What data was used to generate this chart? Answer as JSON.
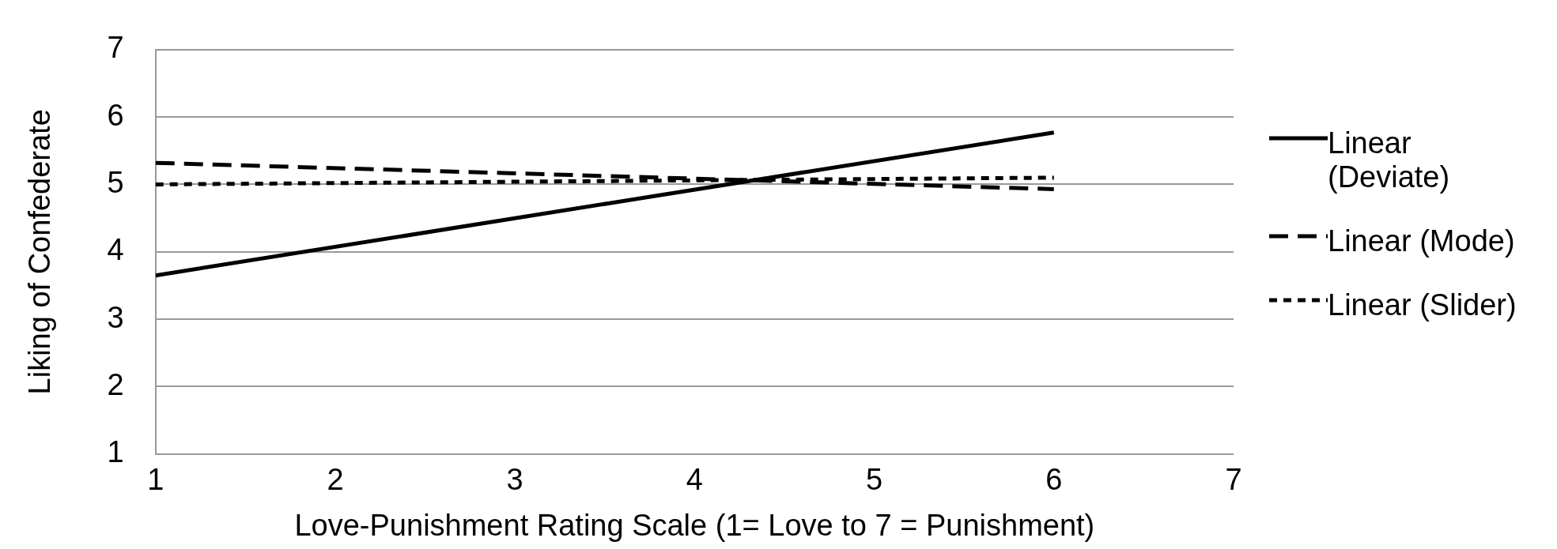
{
  "chart_data": {
    "type": "line",
    "xlabel": "Love-Punishment Rating Scale (1= Love to 7 = Punishment)",
    "ylabel": "Liking of Confederate",
    "x": [
      1,
      6
    ],
    "xlim": [
      1,
      7
    ],
    "xticks": [
      1,
      2,
      3,
      4,
      5,
      6,
      7
    ],
    "ylim": [
      1,
      7
    ],
    "yticks": [
      1,
      2,
      3,
      4,
      5,
      6,
      7
    ],
    "grid": "y",
    "legend": "right",
    "marker": "none",
    "series": [
      {
        "name": "Linear (Deviate)",
        "color": "#000000",
        "line_style": "solid",
        "values": [
          3.65,
          5.77
        ]
      },
      {
        "name": "Linear (Mode)",
        "color": "#000000",
        "line_style": "dashed",
        "values": [
          5.32,
          4.93
        ]
      },
      {
        "name": "Linear (Slider)",
        "color": "#000000",
        "line_style": "dotted",
        "values": [
          5.0,
          5.1
        ]
      }
    ]
  }
}
